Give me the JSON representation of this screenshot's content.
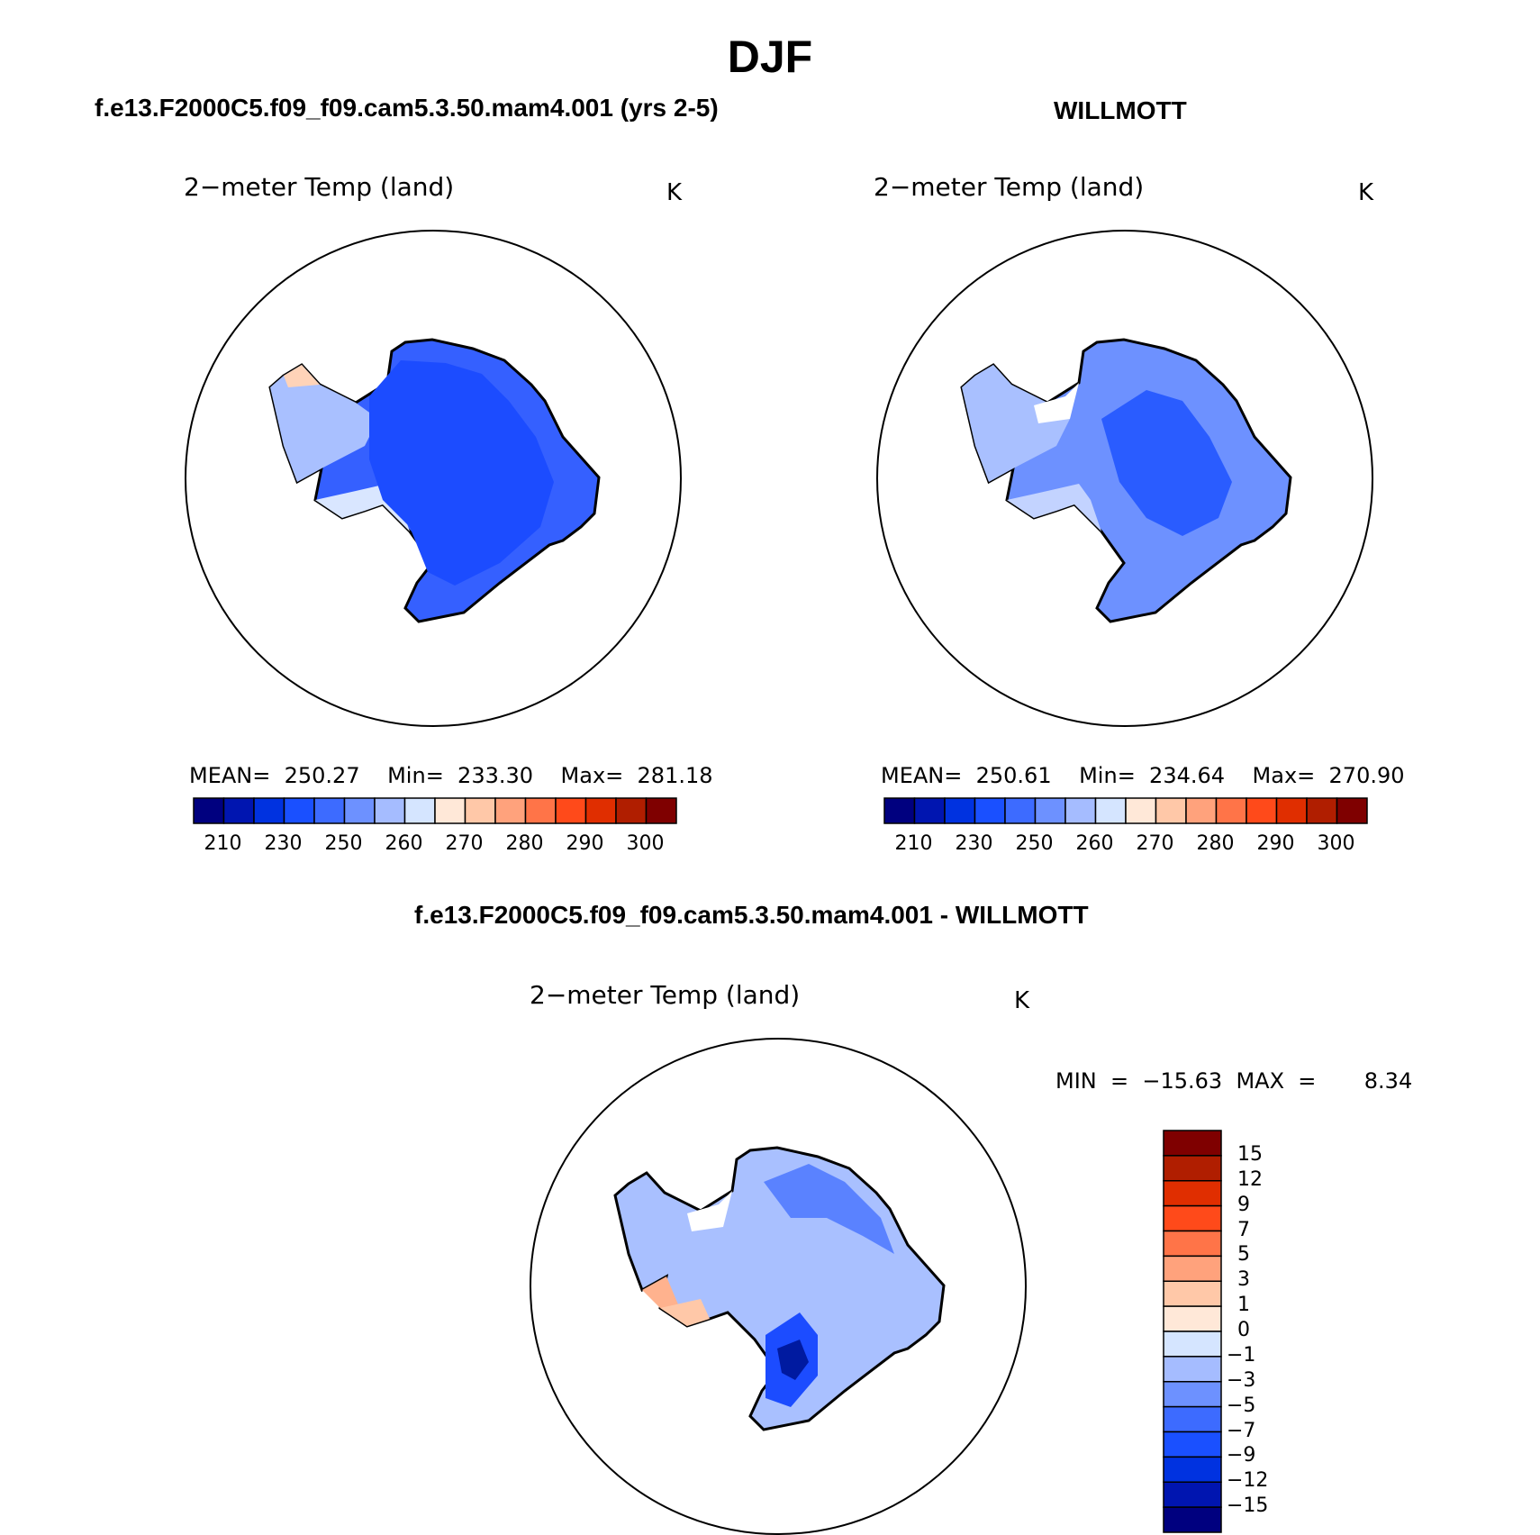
{
  "title": "DJF",
  "panels": [
    {
      "subtitle": "f.e13.F2000C5.f09_f09.cam5.3.50.mam4.001 (yrs 2-5)",
      "variable": "2−meter Temp (land)",
      "units": "K",
      "stats": "MEAN=  250.27    Min=  233.30    Max=  281.18",
      "colorbar": {
        "colors": [
          "#00007f",
          "#0015b0",
          "#0032e0",
          "#1a50ff",
          "#3d6bff",
          "#6d91ff",
          "#a5bcff",
          "#d5e5ff",
          "#ffe8d8",
          "#ffc8a8",
          "#ffa27c",
          "#ff7448",
          "#ff4a1a",
          "#e02e00",
          "#b01e00",
          "#7f0000"
        ],
        "labels": [
          "210",
          "230",
          "250",
          "260",
          "270",
          "280",
          "290",
          "300"
        ]
      }
    },
    {
      "subtitle": "WILLMOTT",
      "variable": "2−meter Temp (land)",
      "units": "K",
      "stats": "MEAN=  250.61    Min=  234.64    Max=  270.90",
      "colorbar": {
        "colors": [
          "#00007f",
          "#0015b0",
          "#0032e0",
          "#1a50ff",
          "#3d6bff",
          "#6d91ff",
          "#a5bcff",
          "#d5e5ff",
          "#ffe8d8",
          "#ffc8a8",
          "#ffa27c",
          "#ff7448",
          "#ff4a1a",
          "#e02e00",
          "#b01e00",
          "#7f0000"
        ],
        "labels": [
          "210",
          "230",
          "250",
          "260",
          "270",
          "280",
          "290",
          "300"
        ]
      }
    },
    {
      "subtitle": "f.e13.F2000C5.f09_f09.cam5.3.50.mam4.001 - WILLMOTT",
      "variable": "2−meter Temp (land)",
      "units": "K",
      "stats": "MIN  =  −15.63  MAX  =       8.34",
      "colorbar": {
        "colors": [
          "#00007f",
          "#0015b0",
          "#0032e0",
          "#1a50ff",
          "#3d6bff",
          "#6d91ff",
          "#a5bcff",
          "#d5e5ff",
          "#ffe8d8",
          "#ffc8a8",
          "#ffa27c",
          "#ff7448",
          "#ff4a1a",
          "#e02e00",
          "#b01e00",
          "#7f0000"
        ],
        "labels": [
          "15",
          "12",
          "9",
          "7",
          "5",
          "3",
          "1",
          "0",
          "−1",
          "−3",
          "−5",
          "−7",
          "−9",
          "−12",
          "−15"
        ]
      }
    }
  ]
}
